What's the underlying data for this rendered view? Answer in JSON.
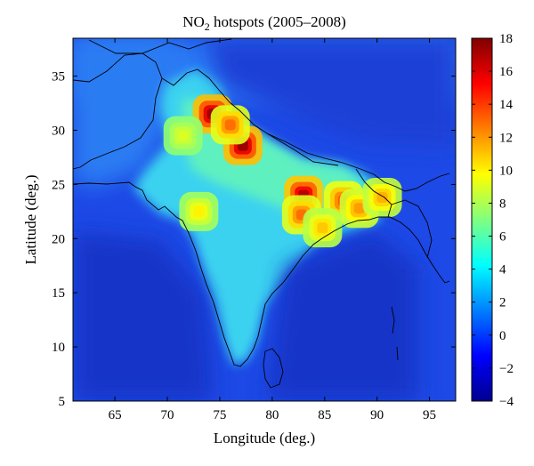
{
  "title": {
    "prefix": "NO",
    "subscript": "2",
    "suffix": " hotspots (2005–2008)"
  },
  "chart_data": {
    "type": "heatmap",
    "xlabel": "Longitude (deg.)",
    "ylabel": "Latitude (deg.)",
    "xlim": [
      61,
      97.5
    ],
    "ylim": [
      5,
      38.5
    ],
    "x_ticks": [
      65,
      70,
      75,
      80,
      85,
      90,
      95
    ],
    "y_ticks": [
      5,
      10,
      15,
      20,
      25,
      30,
      35
    ],
    "colorbar": {
      "range": [
        -4,
        18
      ],
      "ticks": [
        18,
        16,
        14,
        12,
        10,
        8,
        6,
        4,
        2,
        0,
        -2,
        -4
      ],
      "colormap": "jet"
    },
    "hotspots": [
      {
        "lon": 74.3,
        "lat": 31.5,
        "value": 17.5
      },
      {
        "lon": 77.2,
        "lat": 28.6,
        "value": 17.5
      },
      {
        "lon": 83.0,
        "lat": 24.0,
        "value": 17.0
      },
      {
        "lon": 76.0,
        "lat": 30.5,
        "value": 13.0
      },
      {
        "lon": 82.8,
        "lat": 22.2,
        "value": 13.0
      },
      {
        "lon": 86.8,
        "lat": 23.5,
        "value": 13.5
      },
      {
        "lon": 88.3,
        "lat": 22.8,
        "value": 12.0
      },
      {
        "lon": 84.8,
        "lat": 21.0,
        "value": 11.0
      },
      {
        "lon": 73.0,
        "lat": 22.5,
        "value": 10.0
      },
      {
        "lon": 71.5,
        "lat": 29.5,
        "value": 9.0
      },
      {
        "lon": 90.5,
        "lat": 23.8,
        "value": 11.5
      }
    ],
    "colors": {
      "low": "#00008f",
      "mid": "#00ffff",
      "high": "#800000",
      "coastline": "#000000"
    }
  }
}
